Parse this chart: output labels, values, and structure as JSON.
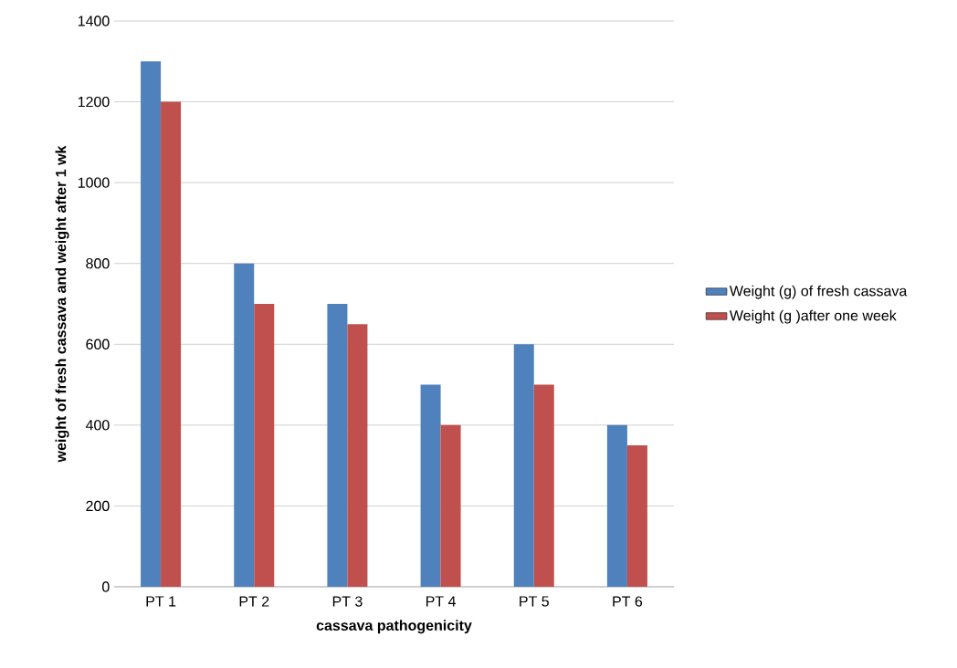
{
  "chart_data": {
    "type": "bar",
    "xlabel": "cassava pathogenicity",
    "ylabel": "weight of fresh cassava and weight after 1 wk",
    "categories": [
      "PT 1",
      "PT 2",
      "PT 3",
      "PT 4",
      "PT 5",
      "PT 6"
    ],
    "series": [
      {
        "name": "Weight (g) of fresh cassava",
        "color": "#4f81bd",
        "values": [
          1300,
          800,
          700,
          500,
          600,
          400
        ]
      },
      {
        "name": "Weight (g )after one week",
        "color": "#c0504d",
        "values": [
          1200,
          700,
          650,
          400,
          500,
          350
        ]
      }
    ],
    "ylim": [
      0,
      1400
    ],
    "yticks": [
      0,
      200,
      400,
      600,
      800,
      1000,
      1200,
      1400
    ],
    "grid": "y",
    "legend": "right"
  }
}
